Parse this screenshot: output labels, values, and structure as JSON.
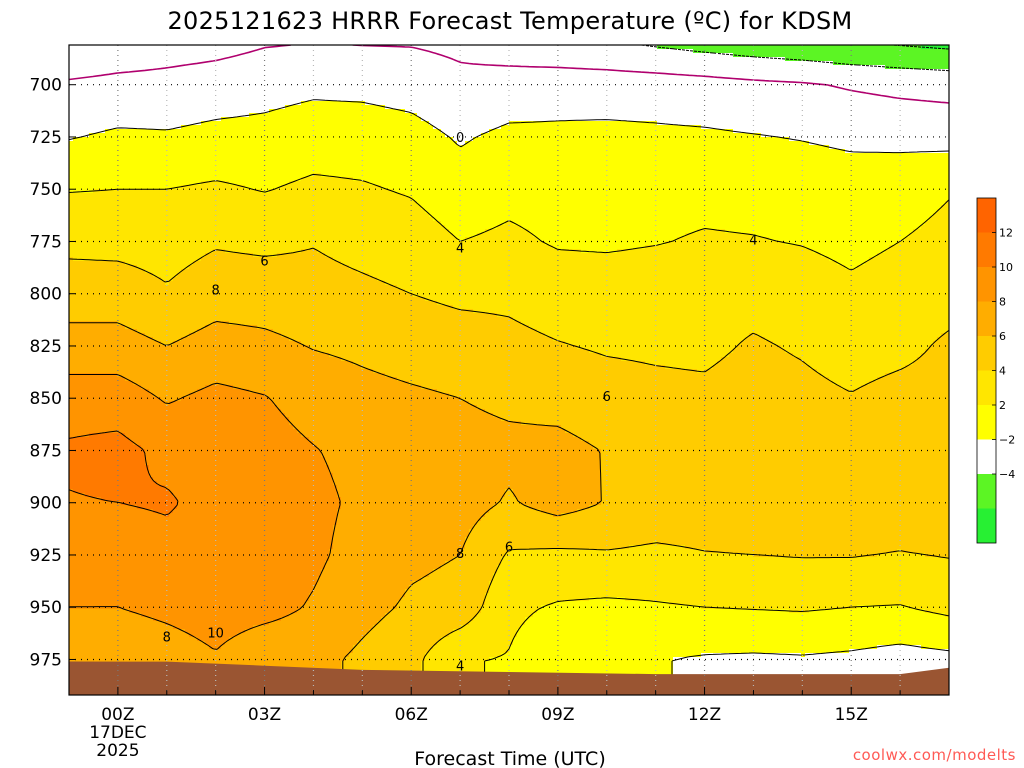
{
  "title": "2025121623 HRRR Forecast Temperature (ºC) for KDSM",
  "credit": "coolwx.com/modelts",
  "colors": {
    "band_-4": "#27f033",
    "band_-2": "#5cf524",
    "band_0": "#ffffff",
    "band_2": "#ffff00",
    "band_4": "#ffe600",
    "band_6": "#ffcc00",
    "band_8": "#ffad00",
    "band_10": "#ff9400",
    "band_12": "#ff7a00",
    "band_14": "#ff6400",
    "freezing_line": "#b0006e",
    "ground": "#9a5532"
  },
  "chart_data": {
    "type": "heatmap",
    "title": "2025121623 HRRR Forecast Temperature (ºC) for KDSM",
    "xlabel": "Forecast Time (UTC)",
    "ylabel": "",
    "x_ticks": [
      "00Z",
      "03Z",
      "06Z",
      "09Z",
      "12Z",
      "15Z"
    ],
    "x_date_label": [
      "17DEC",
      "2025"
    ],
    "x_hours": [
      -1,
      0,
      1,
      2,
      3,
      4,
      5,
      6,
      7,
      8,
      9,
      10,
      11,
      12,
      13,
      14,
      15,
      16,
      17
    ],
    "xlim_hours": [
      -1,
      17
    ],
    "y_ticks": [
      700,
      725,
      750,
      775,
      800,
      825,
      850,
      875,
      900,
      925,
      950,
      975
    ],
    "ylim_hpa": [
      681,
      992
    ],
    "y_reversed": true,
    "grid": true,
    "contour_interval": 2,
    "colorbar": {
      "labels": [
        "12",
        "10",
        "8",
        "6",
        "4",
        "2",
        "−2",
        "−4"
      ],
      "levels": [
        14,
        12,
        10,
        8,
        6,
        4,
        2,
        0,
        -2,
        -4,
        -6
      ]
    },
    "temperature_profiles": [
      {
        "hour": -1,
        "levels": [
          [
            685,
            -1.5
          ],
          [
            700,
            0.3
          ],
          [
            725,
            1.9
          ],
          [
            750,
            3.9
          ],
          [
            775,
            5.5
          ],
          [
            800,
            7.0
          ],
          [
            825,
            8.8
          ],
          [
            850,
            11.0
          ],
          [
            875,
            12.3
          ],
          [
            900,
            11.9
          ],
          [
            925,
            11.2
          ],
          [
            950,
            10.0
          ],
          [
            975,
            8.0
          ]
        ]
      },
      {
        "hour": 0,
        "levels": [
          [
            685,
            -1.0
          ],
          [
            700,
            0.6
          ],
          [
            725,
            2.3
          ],
          [
            750,
            4.0
          ],
          [
            775,
            5.4
          ],
          [
            800,
            7.0
          ],
          [
            825,
            8.8
          ],
          [
            850,
            11.0
          ],
          [
            875,
            12.6
          ],
          [
            900,
            12.0
          ],
          [
            925,
            10.9
          ],
          [
            950,
            10.0
          ],
          [
            975,
            8.3
          ]
        ]
      },
      {
        "hour": 1,
        "levels": [
          [
            685,
            -0.6
          ],
          [
            700,
            0.7
          ],
          [
            725,
            2.2
          ],
          [
            750,
            4.0
          ],
          [
            775,
            5.2
          ],
          [
            800,
            6.2
          ],
          [
            825,
            8.0
          ],
          [
            850,
            9.8
          ],
          [
            875,
            11.5
          ],
          [
            900,
            12.2
          ],
          [
            925,
            11.4
          ],
          [
            950,
            10.5
          ],
          [
            975,
            8.9
          ]
        ]
      },
      {
        "hour": 2,
        "levels": [
          [
            685,
            -0.3
          ],
          [
            700,
            1.0
          ],
          [
            725,
            2.5
          ],
          [
            750,
            4.3
          ],
          [
            775,
            5.8
          ],
          [
            800,
            7.1
          ],
          [
            825,
            8.8
          ],
          [
            850,
            10.5
          ],
          [
            875,
            11.3
          ],
          [
            900,
            11.4
          ],
          [
            925,
            11.2
          ],
          [
            950,
            11.0
          ],
          [
            975,
            9.8
          ]
        ]
      },
      {
        "hour": 3,
        "levels": [
          [
            685,
            0.2
          ],
          [
            700,
            1.3
          ],
          [
            725,
            2.6
          ],
          [
            750,
            3.9
          ],
          [
            775,
            5.6
          ],
          [
            800,
            7.0
          ],
          [
            825,
            8.5
          ],
          [
            850,
            10.1
          ],
          [
            875,
            10.8
          ],
          [
            900,
            11.0
          ],
          [
            925,
            11.2
          ],
          [
            950,
            10.7
          ],
          [
            975,
            8.5
          ]
        ]
      },
      {
        "hour": 4,
        "levels": [
          [
            685,
            0.4
          ],
          [
            700,
            1.6
          ],
          [
            725,
            3.0
          ],
          [
            750,
            4.4
          ],
          [
            775,
            5.9
          ],
          [
            800,
            6.7
          ],
          [
            825,
            7.9
          ],
          [
            850,
            9.2
          ],
          [
            875,
            10.1
          ],
          [
            900,
            10.5
          ],
          [
            925,
            10.4
          ],
          [
            950,
            9.8
          ],
          [
            975,
            8.6
          ]
        ]
      },
      {
        "hour": 5,
        "levels": [
          [
            685,
            0.3
          ],
          [
            700,
            1.5
          ],
          [
            725,
            3.0
          ],
          [
            750,
            4.2
          ],
          [
            775,
            5.4
          ],
          [
            800,
            6.4
          ],
          [
            825,
            7.6
          ],
          [
            850,
            8.6
          ],
          [
            875,
            9.4
          ],
          [
            900,
            9.6
          ],
          [
            925,
            9.2
          ],
          [
            950,
            8.6
          ],
          [
            975,
            7.6
          ]
        ]
      },
      {
        "hour": 6,
        "levels": [
          [
            685,
            0.2
          ],
          [
            700,
            1.2
          ],
          [
            725,
            2.7
          ],
          [
            750,
            3.8
          ],
          [
            775,
            5.0
          ],
          [
            800,
            6.0
          ],
          [
            825,
            7.2
          ],
          [
            850,
            8.3
          ],
          [
            875,
            9.1
          ],
          [
            900,
            9.2
          ],
          [
            925,
            8.4
          ],
          [
            950,
            7.7
          ],
          [
            975,
            6.6
          ]
        ]
      },
      {
        "hour": 7,
        "levels": [
          [
            685,
            -0.2
          ],
          [
            700,
            0.5
          ],
          [
            725,
            1.8
          ],
          [
            750,
            2.8
          ],
          [
            775,
            4.0
          ],
          [
            800,
            5.6
          ],
          [
            825,
            6.9
          ],
          [
            850,
            8.0
          ],
          [
            875,
            8.7
          ],
          [
            900,
            8.8
          ],
          [
            925,
            8.0
          ],
          [
            950,
            7.3
          ],
          [
            975,
            4.1
          ]
        ]
      },
      {
        "hour": 8,
        "levels": [
          [
            685,
            -0.6
          ],
          [
            700,
            0.9
          ],
          [
            725,
            2.4
          ],
          [
            750,
            3.4
          ],
          [
            775,
            4.4
          ],
          [
            800,
            5.6
          ],
          [
            825,
            6.5
          ],
          [
            850,
            7.6
          ],
          [
            875,
            8.5
          ],
          [
            900,
            7.8
          ],
          [
            925,
            5.8
          ],
          [
            950,
            4.4
          ],
          [
            975,
            3.9
          ]
        ]
      },
      {
        "hour": 9,
        "levels": [
          [
            685,
            -0.9
          ],
          [
            700,
            1.1
          ],
          [
            725,
            2.4
          ],
          [
            750,
            3.2
          ],
          [
            775,
            3.8
          ],
          [
            800,
            5.1
          ],
          [
            825,
            6.1
          ],
          [
            850,
            7.3
          ],
          [
            875,
            8.6
          ],
          [
            900,
            8.8
          ],
          [
            925,
            5.6
          ],
          [
            950,
            3.8
          ],
          [
            975,
            2.5
          ]
        ]
      },
      {
        "hour": 10,
        "levels": [
          [
            685,
            -1.1
          ],
          [
            700,
            1.0
          ],
          [
            725,
            2.5
          ],
          [
            750,
            3.2
          ],
          [
            775,
            3.7
          ],
          [
            800,
            5.1
          ],
          [
            825,
            5.8
          ],
          [
            850,
            6.8
          ],
          [
            875,
            7.9
          ],
          [
            900,
            7.9
          ],
          [
            925,
            5.8
          ],
          [
            950,
            3.6
          ],
          [
            975,
            2.4
          ]
        ]
      },
      {
        "hour": 11,
        "levels": [
          [
            685,
            -1.5
          ],
          [
            700,
            0.9
          ],
          [
            725,
            2.4
          ],
          [
            750,
            3.3
          ],
          [
            775,
            3.9
          ],
          [
            800,
            5.2
          ],
          [
            825,
            5.7
          ],
          [
            850,
            6.5
          ],
          [
            875,
            7.2
          ],
          [
            900,
            7.3
          ],
          [
            925,
            5.6
          ],
          [
            950,
            3.8
          ],
          [
            975,
            2.1
          ]
        ]
      },
      {
        "hour": 12,
        "levels": [
          [
            685,
            -1.9
          ],
          [
            700,
            0.7
          ],
          [
            725,
            2.3
          ],
          [
            750,
            3.4
          ],
          [
            775,
            4.2
          ],
          [
            800,
            5.3
          ],
          [
            825,
            5.6
          ],
          [
            850,
            6.4
          ],
          [
            875,
            7.0
          ],
          [
            900,
            7.2
          ],
          [
            925,
            5.9
          ],
          [
            950,
            4.0
          ],
          [
            975,
            1.8
          ]
        ]
      },
      {
        "hour": 13,
        "levels": [
          [
            685,
            -2.3
          ],
          [
            700,
            0.4
          ],
          [
            725,
            2.1
          ],
          [
            750,
            3.3
          ],
          [
            775,
            4.1
          ],
          [
            800,
            5.4
          ],
          [
            825,
            6.2
          ],
          [
            850,
            6.8
          ],
          [
            875,
            7.1
          ],
          [
            900,
            7.2
          ],
          [
            925,
            6.0
          ],
          [
            950,
            4.1
          ],
          [
            975,
            1.7
          ]
        ]
      },
      {
        "hour": 14,
        "levels": [
          [
            685,
            -2.6
          ],
          [
            700,
            0.2
          ],
          [
            725,
            1.9
          ],
          [
            750,
            3.2
          ],
          [
            775,
            3.9
          ],
          [
            800,
            5.0
          ],
          [
            825,
            5.8
          ],
          [
            850,
            6.5
          ],
          [
            875,
            7.0
          ],
          [
            900,
            7.1
          ],
          [
            925,
            6.1
          ],
          [
            950,
            4.2
          ],
          [
            975,
            1.8
          ]
        ]
      },
      {
        "hour": 15,
        "levels": [
          [
            685,
            -3.0
          ],
          [
            700,
            -0.2
          ],
          [
            725,
            1.6
          ],
          [
            750,
            3.0
          ],
          [
            775,
            3.5
          ],
          [
            800,
            4.4
          ],
          [
            825,
            5.2
          ],
          [
            850,
            6.1
          ],
          [
            875,
            6.9
          ],
          [
            900,
            7.0
          ],
          [
            925,
            6.1
          ],
          [
            950,
            4.0
          ],
          [
            975,
            1.6
          ]
        ]
      },
      {
        "hour": 16,
        "levels": [
          [
            685,
            -3.3
          ],
          [
            700,
            -0.5
          ],
          [
            725,
            1.4
          ],
          [
            750,
            3.4
          ],
          [
            775,
            4.0
          ],
          [
            800,
            4.9
          ],
          [
            825,
            5.5
          ],
          [
            850,
            6.6
          ],
          [
            875,
            7.0
          ],
          [
            900,
            7.1
          ],
          [
            925,
            5.9
          ],
          [
            950,
            3.9
          ],
          [
            975,
            1.2
          ]
        ]
      },
      {
        "hour": 17,
        "levels": [
          [
            685,
            -3.6
          ],
          [
            700,
            -0.7
          ],
          [
            725,
            1.3
          ],
          [
            750,
            3.9
          ],
          [
            775,
            4.4
          ],
          [
            800,
            5.3
          ],
          [
            825,
            6.3
          ],
          [
            850,
            6.7
          ],
          [
            875,
            6.9
          ],
          [
            900,
            7.2
          ],
          [
            925,
            6.1
          ],
          [
            950,
            4.5
          ],
          [
            975,
            1.5
          ]
        ]
      }
    ],
    "surface_pressure": [
      {
        "hour": -1,
        "hpa": 976
      },
      {
        "hour": 1,
        "hpa": 976
      },
      {
        "hour": 3,
        "hpa": 978
      },
      {
        "hour": 5,
        "hpa": 980
      },
      {
        "hour": 8,
        "hpa": 981
      },
      {
        "hour": 11,
        "hpa": 982
      },
      {
        "hour": 14,
        "hpa": 982
      },
      {
        "hour": 16,
        "hpa": 982
      },
      {
        "hour": 17,
        "hpa": 979
      }
    ],
    "contour_labels": [
      {
        "text": "0",
        "hour": 7,
        "hpa": 725
      },
      {
        "text": "4",
        "hour": 7,
        "hpa": 778
      },
      {
        "text": "4",
        "hour": 13,
        "hpa": 774
      },
      {
        "text": "4",
        "hour": 7,
        "hpa": 978
      },
      {
        "text": "6",
        "hour": 3,
        "hpa": 784
      },
      {
        "text": "6",
        "hour": 10,
        "hpa": 849
      },
      {
        "text": "6",
        "hour": 8,
        "hpa": 921
      },
      {
        "text": "8",
        "hour": 2,
        "hpa": 798
      },
      {
        "text": "8",
        "hour": 7,
        "hpa": 924
      },
      {
        "text": "8",
        "hour": 1,
        "hpa": 964
      },
      {
        "text": "10",
        "hour": 2,
        "hpa": 962
      }
    ]
  }
}
